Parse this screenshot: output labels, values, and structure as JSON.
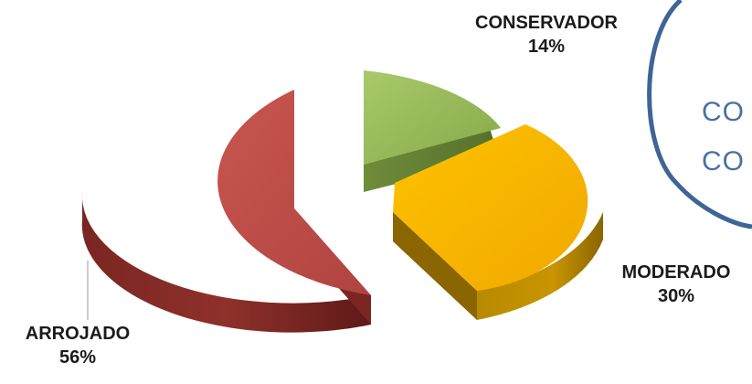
{
  "chart_data": {
    "type": "pie",
    "style": "3d-exploded",
    "slices": [
      {
        "label": "CONSERVADOR",
        "value": 14,
        "display": "14%",
        "color": "#9bbb59"
      },
      {
        "label": "MODERADO",
        "value": 30,
        "display": "30%",
        "color": "#f5b800"
      },
      {
        "label": "ARROJADO",
        "value": 56,
        "display": "56%",
        "color": "#c0504d"
      }
    ]
  },
  "side_panel": {
    "line1": "CO",
    "line2": "CO",
    "ring_color": "#3f6496"
  }
}
